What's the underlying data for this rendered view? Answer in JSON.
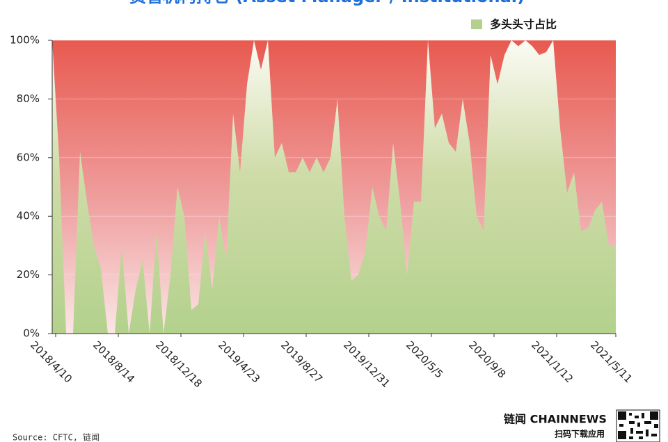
{
  "chart_data": {
    "type": "area",
    "title": "资管机构持仓 (Asset Manager / Institutional)",
    "source": "Source: CFTC, 链闻",
    "x": [
      "2018-04-03",
      "2018-04-17",
      "2018-05-01",
      "2018-05-15",
      "2018-05-29",
      "2018-06-12",
      "2018-06-26",
      "2018-07-10",
      "2018-07-24",
      "2018-08-07",
      "2018-08-21",
      "2018-09-04",
      "2018-09-18",
      "2018-10-02",
      "2018-10-16",
      "2018-10-30",
      "2018-11-13",
      "2018-11-27",
      "2018-12-11",
      "2018-12-25",
      "2019-01-08",
      "2019-01-22",
      "2019-02-05",
      "2019-02-19",
      "2019-03-05",
      "2019-03-19",
      "2019-04-02",
      "2019-04-16",
      "2019-04-30",
      "2019-05-14",
      "2019-05-28",
      "2019-06-11",
      "2019-06-25",
      "2019-07-09",
      "2019-07-23",
      "2019-08-06",
      "2019-08-20",
      "2019-09-03",
      "2019-09-17",
      "2019-10-01",
      "2019-10-15",
      "2019-10-29",
      "2019-11-12",
      "2019-11-26",
      "2019-12-10",
      "2019-12-24",
      "2020-01-07",
      "2020-01-21",
      "2020-02-04",
      "2020-02-18",
      "2020-03-03",
      "2020-03-17",
      "2020-03-31",
      "2020-04-14",
      "2020-04-28",
      "2020-05-12",
      "2020-05-26",
      "2020-06-09",
      "2020-06-23",
      "2020-07-07",
      "2020-07-21",
      "2020-08-04",
      "2020-08-18",
      "2020-09-01",
      "2020-09-15",
      "2020-09-29",
      "2020-10-13",
      "2020-10-27",
      "2020-11-10",
      "2020-11-24",
      "2020-12-08",
      "2020-12-22",
      "2021-01-05",
      "2021-01-19",
      "2021-02-02",
      "2021-02-16",
      "2021-03-02",
      "2021-03-16",
      "2021-03-30",
      "2021-04-13",
      "2021-04-27",
      "2021-05-11"
    ],
    "series": [
      {
        "name": "多头头寸占比",
        "color": "#b3d18c",
        "values": [
          100,
          60,
          0,
          0,
          62,
          45,
          30,
          22,
          0,
          0,
          30,
          0,
          15,
          25,
          0,
          35,
          0,
          20,
          50,
          40,
          8,
          10,
          35,
          15,
          40,
          25,
          75,
          55,
          85,
          100,
          90,
          100,
          60,
          65,
          55,
          55,
          60,
          55,
          60,
          55,
          60,
          80,
          40,
          18,
          20,
          28,
          50,
          40,
          35,
          65,
          45,
          20,
          45,
          45,
          100,
          70,
          75,
          65,
          62,
          80,
          65,
          40,
          35,
          95,
          85,
          95,
          100,
          98,
          100,
          98,
          95,
          96,
          100,
          70,
          48,
          55,
          35,
          36,
          42,
          45,
          30,
          30
        ]
      }
    ],
    "xlim": [
      "2018-04-03",
      "2021-05-11"
    ],
    "xticks": [
      {
        "value": "2018-04-10",
        "label": "2018/4/10"
      },
      {
        "value": "2018-08-14",
        "label": "2018/8/14"
      },
      {
        "value": "2018-12-18",
        "label": "2018/12/18"
      },
      {
        "value": "2019-04-23",
        "label": "2019/4/23"
      },
      {
        "value": "2019-08-27",
        "label": "2019/8/27"
      },
      {
        "value": "2019-12-31",
        "label": "2019/12/31"
      },
      {
        "value": "2020-05-05",
        "label": "2020/5/5"
      },
      {
        "value": "2020-09-08",
        "label": "2020/9/8"
      },
      {
        "value": "2021-01-12",
        "label": "2021/1/12"
      },
      {
        "value": "2021-05-11",
        "label": "2021/5/11"
      }
    ],
    "ylim": [
      0,
      100
    ],
    "yticks": [
      {
        "value": 0,
        "label": "0%"
      },
      {
        "value": 20,
        "label": "20%"
      },
      {
        "value": 40,
        "label": "40%"
      },
      {
        "value": 60,
        "label": "60%"
      },
      {
        "value": 80,
        "label": "80%"
      },
      {
        "value": 100,
        "label": "100%"
      }
    ],
    "grid": true,
    "legend": "top-right"
  },
  "footer": {
    "brand": "链闻 CHAINNEWS",
    "slogan": "扫码下载应用"
  }
}
